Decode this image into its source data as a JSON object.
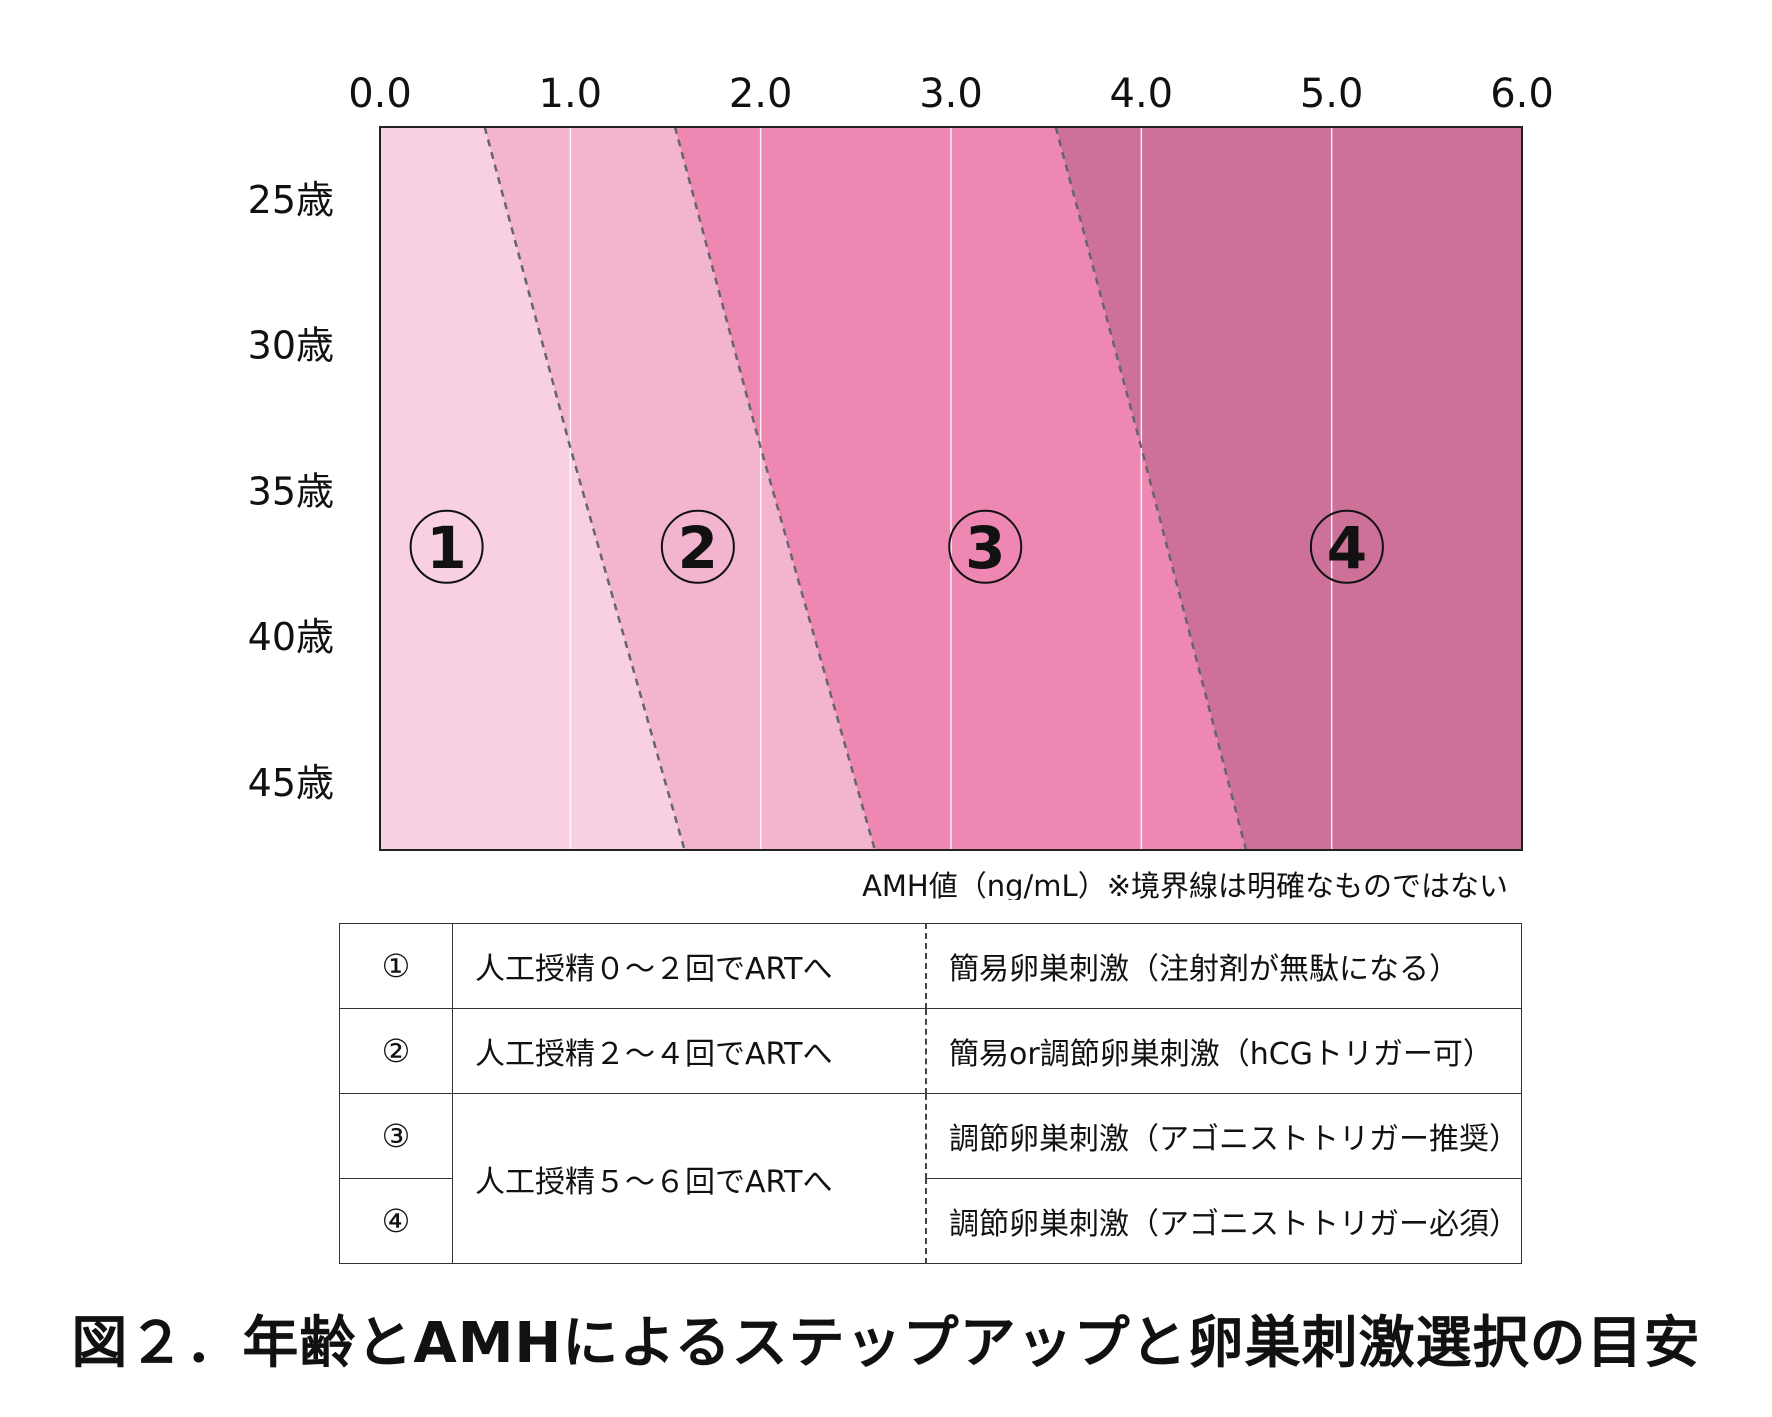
{
  "chart_data": {
    "type": "area",
    "x_ticks": [
      "0.0",
      "1.0",
      "2.0",
      "3.0",
      "4.0",
      "5.0",
      "6.0"
    ],
    "xlim": [
      0,
      6
    ],
    "y_ticks": [
      "25歳",
      "30歳",
      "35歳",
      "40歳",
      "45歳"
    ],
    "y_values": [
      25,
      30,
      35,
      40,
      45
    ],
    "ylim": [
      22.5,
      47.3
    ],
    "grid": "vertical",
    "zones": [
      {
        "label": "1",
        "color": "#f8d0e2"
      },
      {
        "label": "2",
        "color": "#f3b4cf"
      },
      {
        "label": "3",
        "color": "#ee88b2"
      },
      {
        "label": "4",
        "color": "#cd7199"
      }
    ],
    "boundaries": [
      {
        "top": [
          0.55,
          22.5
        ],
        "mid": [
          1.0,
          33.5
        ],
        "bottom": [
          1.6,
          47.3
        ]
      },
      {
        "top": [
          1.55,
          22.5
        ],
        "mid": [
          2.0,
          33.5
        ],
        "bottom": [
          2.6,
          47.3
        ]
      },
      {
        "top": [
          3.55,
          22.5
        ],
        "mid": [
          4.0,
          33.5
        ],
        "bottom": [
          4.55,
          47.3
        ]
      }
    ],
    "zone_label_positions": [
      {
        "x": 0.35,
        "y": 36.9
      },
      {
        "x": 1.67,
        "y": 36.9
      },
      {
        "x": 3.18,
        "y": 36.9
      },
      {
        "x": 5.08,
        "y": 36.9
      }
    ],
    "note": "AMH値（ng/mL）※境界線は明確なものではない"
  },
  "table": {
    "rows": [
      {
        "num": "①",
        "procedure": "人工授精０〜２回でARTへ",
        "stimulation": "簡易卵巣刺激（注射剤が無駄になる）"
      },
      {
        "num": "②",
        "procedure": "人工授精２〜４回でARTへ",
        "stimulation": "簡易or調節卵巣刺激（hCGトリガー可）"
      },
      {
        "num": "③",
        "procedure": "人工授精５〜６回でARTへ",
        "stimulation": "調節卵巣刺激（アゴニストトリガー推奨）"
      },
      {
        "num": "④",
        "procedure": "",
        "stimulation": "調節卵巣刺激（アゴニストトリガー必須）"
      }
    ]
  },
  "caption": "図２．年齢とAMHによるステップアップと卵巣刺激選択の目安"
}
